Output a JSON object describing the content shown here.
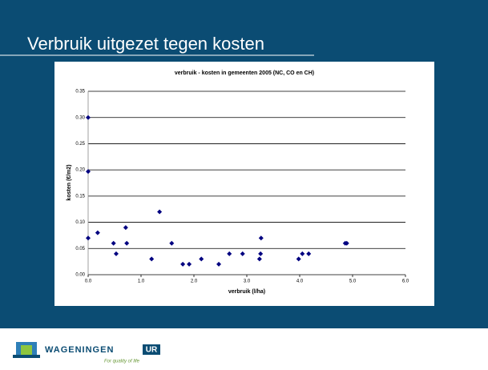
{
  "slide": {
    "title": "Verbruik uitgezet tegen kosten",
    "logo": "WAGENINGEN",
    "logo_ur": "UR",
    "tagline": "For quality of life"
  },
  "chart_data": {
    "type": "scatter",
    "title": "verbruik - kosten in gemeenten 2005 (NC, CO en CH)",
    "x_label": "verbruik (l/ha)",
    "y_label": "kosten (€/m2)",
    "color": "#000080",
    "grid": true,
    "x": [
      0.0,
      0.0,
      0.0,
      0.18,
      0.48,
      0.53,
      0.71,
      0.73,
      1.2,
      1.35,
      1.58,
      1.79,
      1.91,
      2.14,
      2.47,
      2.67,
      2.92,
      3.24,
      3.26,
      3.27,
      3.98,
      4.05,
      4.17,
      4.86,
      4.89
    ],
    "values": [
      0.3,
      0.197,
      0.07,
      0.08,
      0.06,
      0.04,
      0.09,
      0.06,
      0.03,
      0.12,
      0.06,
      0.02,
      0.02,
      0.03,
      0.02,
      0.04,
      0.04,
      0.03,
      0.04,
      0.07,
      0.03,
      0.04,
      0.04,
      0.06,
      0.06
    ],
    "xlim": [
      0,
      6
    ],
    "xticks": [
      {
        "value": 0,
        "label": "0.0"
      },
      {
        "value": 1,
        "label": "1.0"
      },
      {
        "value": 2,
        "label": "2.0"
      },
      {
        "value": 3,
        "label": "3.0"
      },
      {
        "value": 4,
        "label": "4.0"
      },
      {
        "value": 5,
        "label": "5.0"
      },
      {
        "value": 6,
        "label": "6.0"
      }
    ],
    "ylim": [
      0,
      0.35
    ],
    "yticks": [
      {
        "value": 0,
        "label": "0.00"
      },
      {
        "value": 0.05,
        "label": "0.05"
      },
      {
        "value": 0.1,
        "label": "0.10"
      },
      {
        "value": 0.15,
        "label": "0.15"
      },
      {
        "value": 0.2,
        "label": "0.20"
      },
      {
        "value": 0.25,
        "label": "0.25"
      },
      {
        "value": 0.3,
        "label": "0.30"
      },
      {
        "value": 0.35,
        "label": "0.35"
      }
    ]
  }
}
